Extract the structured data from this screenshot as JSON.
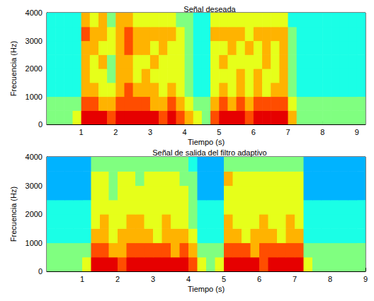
{
  "chart_data": [
    {
      "type": "heatmap",
      "title": "Señal deseada",
      "xlabel": "Tiempo (s)",
      "ylabel": "Frecuencia (Hz)",
      "xlim": [
        0,
        9.25
      ],
      "xticks": [
        1,
        2,
        3,
        4,
        5,
        6,
        7,
        8,
        9
      ],
      "ylim": [
        0,
        4000
      ],
      "yticks": [
        0,
        1000,
        2000,
        3000,
        4000
      ],
      "zlim": [
        0,
        10
      ],
      "x_edges": [
        0,
        0.25,
        0.5,
        0.75,
        1,
        1.25,
        1.5,
        1.75,
        2,
        2.25,
        2.5,
        2.75,
        3,
        3.25,
        3.5,
        3.75,
        4,
        4.25,
        4.5,
        4.75,
        5,
        5.25,
        5.5,
        5.75,
        6,
        6.25,
        6.5,
        6.75,
        7,
        7.25,
        7.5,
        7.75,
        8,
        8.25,
        8.5,
        8.75,
        9,
        9.25
      ],
      "y_edges": [
        0,
        500,
        1000,
        1500,
        2000,
        2500,
        3000,
        3500,
        4000
      ],
      "z": [
        [
          5,
          5,
          5,
          6,
          9,
          9,
          9,
          8,
          9,
          9,
          9,
          9,
          9,
          8,
          9,
          8,
          7,
          6,
          5,
          8,
          9,
          9,
          9,
          8,
          9,
          9,
          9,
          9,
          7,
          5,
          5,
          5,
          5,
          5,
          5,
          5,
          5
        ],
        [
          5,
          5,
          5,
          5,
          8,
          8,
          7,
          7,
          8,
          8,
          8,
          8,
          7,
          7,
          8,
          7,
          6,
          5,
          5,
          7,
          8,
          7,
          8,
          7,
          8,
          8,
          8,
          8,
          6,
          5,
          5,
          5,
          5,
          5,
          5,
          5,
          5
        ],
        [
          4,
          4,
          4,
          4,
          7,
          7,
          6,
          6,
          7,
          8,
          7,
          7,
          7,
          6,
          7,
          6,
          5,
          4,
          4,
          6,
          7,
          6,
          7,
          6,
          7,
          6,
          7,
          7,
          5,
          4,
          4,
          4,
          4,
          4,
          4,
          4,
          4
        ],
        [
          4,
          4,
          4,
          4,
          7,
          6,
          6,
          5,
          7,
          7,
          6,
          7,
          6,
          6,
          6,
          6,
          5,
          4,
          4,
          6,
          6,
          6,
          7,
          6,
          7,
          6,
          6,
          7,
          5,
          4,
          4,
          4,
          4,
          4,
          4,
          4,
          4
        ],
        [
          4,
          4,
          4,
          4,
          7,
          6,
          7,
          5,
          7,
          7,
          6,
          6,
          7,
          6,
          6,
          6,
          5,
          4,
          4,
          6,
          7,
          6,
          6,
          6,
          6,
          7,
          6,
          7,
          5,
          4,
          4,
          4,
          4,
          4,
          4,
          4,
          4
        ],
        [
          4,
          4,
          4,
          4,
          7,
          7,
          6,
          6,
          7,
          8,
          7,
          7,
          6,
          7,
          6,
          6,
          5,
          4,
          4,
          6,
          6,
          7,
          6,
          7,
          6,
          7,
          6,
          7,
          5,
          4,
          4,
          4,
          4,
          4,
          4,
          4,
          4
        ],
        [
          4,
          4,
          4,
          4,
          8,
          7,
          7,
          6,
          7,
          8,
          7,
          7,
          7,
          7,
          7,
          6,
          5,
          4,
          4,
          7,
          7,
          7,
          7,
          6,
          7,
          7,
          7,
          7,
          5,
          4,
          4,
          4,
          4,
          4,
          4,
          4,
          4
        ],
        [
          4,
          4,
          4,
          4,
          7,
          6,
          7,
          5,
          7,
          7,
          6,
          6,
          6,
          6,
          6,
          5,
          5,
          4,
          4,
          6,
          6,
          6,
          6,
          6,
          6,
          6,
          6,
          6,
          4,
          4,
          4,
          4,
          4,
          4,
          4,
          4,
          4
        ]
      ]
    },
    {
      "type": "heatmap",
      "title": "Señal de salida del filtro adaptivo",
      "xlabel": "Tiempo (s)",
      "ylabel": "Frecuencia (Hz)",
      "xlim": [
        0,
        9
      ],
      "xticks": [
        1,
        2,
        3,
        4,
        5,
        6,
        7,
        8,
        9
      ],
      "ylim": [
        0,
        4000
      ],
      "yticks": [
        0,
        1000,
        2000,
        3000,
        4000
      ],
      "zlim": [
        0,
        10
      ],
      "x_edges": [
        0,
        0.25,
        0.5,
        0.75,
        1,
        1.25,
        1.5,
        1.75,
        2,
        2.25,
        2.5,
        2.75,
        3,
        3.25,
        3.5,
        3.75,
        4,
        4.25,
        4.5,
        4.75,
        5,
        5.25,
        5.5,
        5.75,
        6,
        6.25,
        6.5,
        6.75,
        7,
        7.25,
        7.5,
        7.75,
        8,
        8.25,
        8.5,
        8.75,
        9
      ],
      "y_edges": [
        0,
        500,
        1000,
        1500,
        2000,
        2500,
        3000,
        3500,
        4000
      ],
      "z": [
        [
          5,
          5,
          5,
          5,
          6,
          9,
          9,
          9,
          8,
          9,
          9,
          9,
          9,
          9,
          9,
          9,
          8,
          6,
          5,
          6,
          9,
          9,
          9,
          9,
          8,
          9,
          9,
          9,
          9,
          6,
          5,
          5,
          5,
          5,
          5,
          5
        ],
        [
          5,
          5,
          5,
          5,
          5,
          8,
          8,
          7,
          7,
          8,
          8,
          8,
          8,
          8,
          7,
          8,
          7,
          5,
          5,
          5,
          8,
          8,
          8,
          7,
          8,
          8,
          8,
          8,
          8,
          5,
          5,
          5,
          5,
          5,
          5,
          5
        ],
        [
          4,
          4,
          4,
          4,
          4,
          7,
          7,
          6,
          7,
          7,
          7,
          7,
          6,
          7,
          7,
          7,
          6,
          4,
          4,
          4,
          7,
          7,
          6,
          7,
          7,
          7,
          6,
          7,
          7,
          4,
          4,
          4,
          4,
          4,
          4,
          4
        ],
        [
          4,
          4,
          4,
          4,
          4,
          6,
          7,
          6,
          6,
          7,
          7,
          6,
          6,
          7,
          6,
          6,
          5,
          4,
          4,
          4,
          7,
          6,
          6,
          6,
          7,
          6,
          6,
          7,
          6,
          4,
          4,
          4,
          4,
          4,
          4,
          4
        ],
        [
          4,
          4,
          4,
          4,
          4,
          6,
          6,
          6,
          6,
          6,
          6,
          6,
          6,
          6,
          6,
          6,
          5,
          4,
          4,
          4,
          6,
          6,
          6,
          6,
          6,
          6,
          6,
          6,
          6,
          4,
          4,
          4,
          4,
          4,
          4,
          4
        ],
        [
          3,
          3,
          3,
          3,
          3,
          6,
          6,
          5,
          6,
          6,
          6,
          6,
          6,
          6,
          6,
          6,
          5,
          3,
          3,
          3,
          6,
          6,
          6,
          6,
          6,
          6,
          6,
          6,
          6,
          3,
          3,
          3,
          3,
          3,
          3,
          3
        ],
        [
          3,
          3,
          3,
          3,
          3,
          6,
          6,
          5,
          6,
          6,
          5,
          6,
          6,
          6,
          6,
          5,
          5,
          3,
          3,
          3,
          7,
          6,
          6,
          6,
          6,
          6,
          6,
          6,
          6,
          3,
          3,
          3,
          3,
          3,
          3,
          3
        ],
        [
          3,
          3,
          3,
          3,
          3,
          5,
          5,
          5,
          5,
          5,
          5,
          5,
          5,
          5,
          5,
          5,
          4,
          3,
          3,
          3,
          5,
          5,
          5,
          5,
          5,
          5,
          5,
          5,
          5,
          3,
          3,
          3,
          3,
          3,
          3,
          3
        ]
      ]
    }
  ]
}
